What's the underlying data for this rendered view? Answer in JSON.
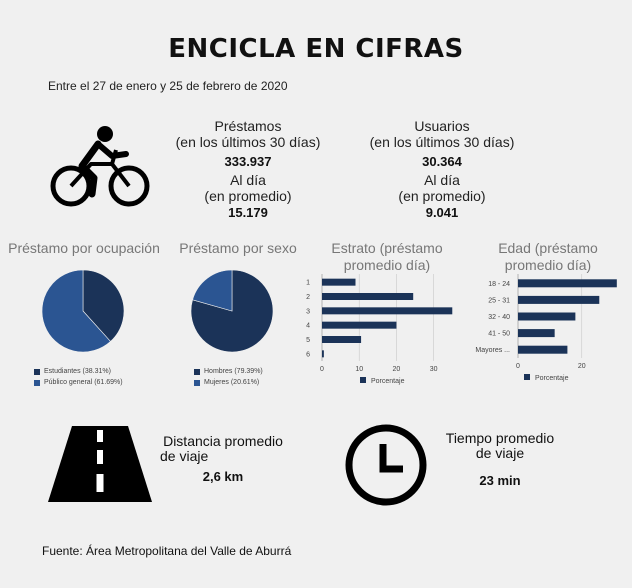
{
  "title": "ENCICLA EN CIFRAS",
  "date_range": "Entre el 27 de enero y 25 de febrero de 2020",
  "icons": {
    "bike": "bicycle-rider-icon",
    "road": "road-icon",
    "clock": "clock-icon"
  },
  "stats": {
    "prestamos": {
      "label1": "Préstamos",
      "label2": "(en los últimos 30 días)",
      "value": "333.937",
      "daily_label1": "Al día",
      "daily_label2": "(en promedio)",
      "daily_value": "15.179"
    },
    "usuarios": {
      "label1": "Usuarios",
      "label2": "(en los últimos 30 días)",
      "value": "30.364",
      "daily_label1": "Al día",
      "daily_label2": "(en promedio)",
      "daily_value": "9.041"
    }
  },
  "colors": {
    "dark": "#1b3358",
    "medium": "#2b5592"
  },
  "chart_data": [
    {
      "type": "pie",
      "title": "Préstamo por ocupación",
      "slices": [
        {
          "label": "Estudiantes (38.31%)",
          "value": 38.31,
          "color": "#1b3358"
        },
        {
          "label": "Público general (61.69%)",
          "value": 61.69,
          "color": "#2b5592"
        }
      ]
    },
    {
      "type": "pie",
      "title": "Préstamo por sexo",
      "slices": [
        {
          "label": "Hombres (79.39%)",
          "value": 79.39,
          "color": "#1b3358"
        },
        {
          "label": "Mujeres (20.61%)",
          "value": 20.61,
          "color": "#2b5592"
        }
      ]
    },
    {
      "type": "bar",
      "orientation": "horizontal",
      "title_line1": "Estrato (préstamo",
      "title_line2": "promedio día)",
      "categories": [
        "1",
        "2",
        "3",
        "4",
        "5",
        "6"
      ],
      "values": [
        9,
        24.5,
        35,
        20,
        10.5,
        0.5
      ],
      "xlim": [
        0,
        36
      ],
      "xticks": [
        "0",
        "10",
        "20",
        "30"
      ],
      "legend": "Porcentaje",
      "grid": true
    },
    {
      "type": "bar",
      "orientation": "horizontal",
      "title_line1": "Edad (préstamo",
      "title_line2": "promedio día)",
      "categories": [
        "18 - 24",
        "25 - 31",
        "32 - 40",
        "41 - 50",
        "Mayores ..."
      ],
      "values": [
        31,
        25.5,
        18,
        11.5,
        15.5
      ],
      "xlim": [
        0,
        32
      ],
      "xticks": [
        "0",
        "20"
      ],
      "legend": "Porcentaje",
      "grid": true
    }
  ],
  "bottom": {
    "distancia": {
      "label1": "Distancia promedio",
      "label2": "de viaje",
      "value": "2,6 km"
    },
    "tiempo": {
      "label1": "Tiempo promedio",
      "label2": "de viaje",
      "value": "23 min"
    }
  },
  "source": "Fuente: Área Metropolitana del Valle de Aburrá"
}
